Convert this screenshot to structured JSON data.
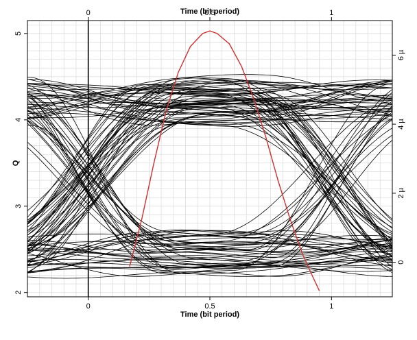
{
  "chart_data": {
    "type": "line",
    "title": "",
    "xlabel_top": "Time (bit period)",
    "xlabel_bottom": "Time (bit period)",
    "ylabel": "Q",
    "y2label": "",
    "xlim": [
      -0.25,
      1.25
    ],
    "ylim": [
      1.95,
      5.15
    ],
    "y2lim": [
      -1.0,
      7.0
    ],
    "xticks": [
      0,
      0.5,
      1
    ],
    "yticks": [
      2,
      3,
      4,
      5
    ],
    "y2ticks": [
      0,
      2,
      4,
      6
    ],
    "y2tick_labels": [
      "0",
      "2 µ",
      "4 µ",
      "6 µ"
    ],
    "grid": true,
    "series": [
      {
        "kind": "eye-traces",
        "color": "#000000",
        "eye": {
          "crossing_x": [
            0,
            1
          ],
          "crossing_y": 3.35,
          "upper_levels": [
            3.95,
            4.5
          ],
          "lower_levels": [
            2.2,
            2.7
          ],
          "trace_count": 110
        }
      },
      {
        "kind": "q-curve",
        "color": "#d03030",
        "x": [
          0.17,
          0.22,
          0.27,
          0.32,
          0.37,
          0.42,
          0.47,
          0.5,
          0.53,
          0.58,
          0.63,
          0.68,
          0.73,
          0.78,
          0.83,
          0.88,
          0.92,
          0.95
        ],
        "y": [
          2.3,
          2.85,
          3.5,
          4.1,
          4.55,
          4.85,
          5.0,
          5.03,
          5.0,
          4.88,
          4.62,
          4.25,
          3.8,
          3.3,
          2.85,
          2.45,
          2.2,
          2.02
        ]
      }
    ]
  }
}
